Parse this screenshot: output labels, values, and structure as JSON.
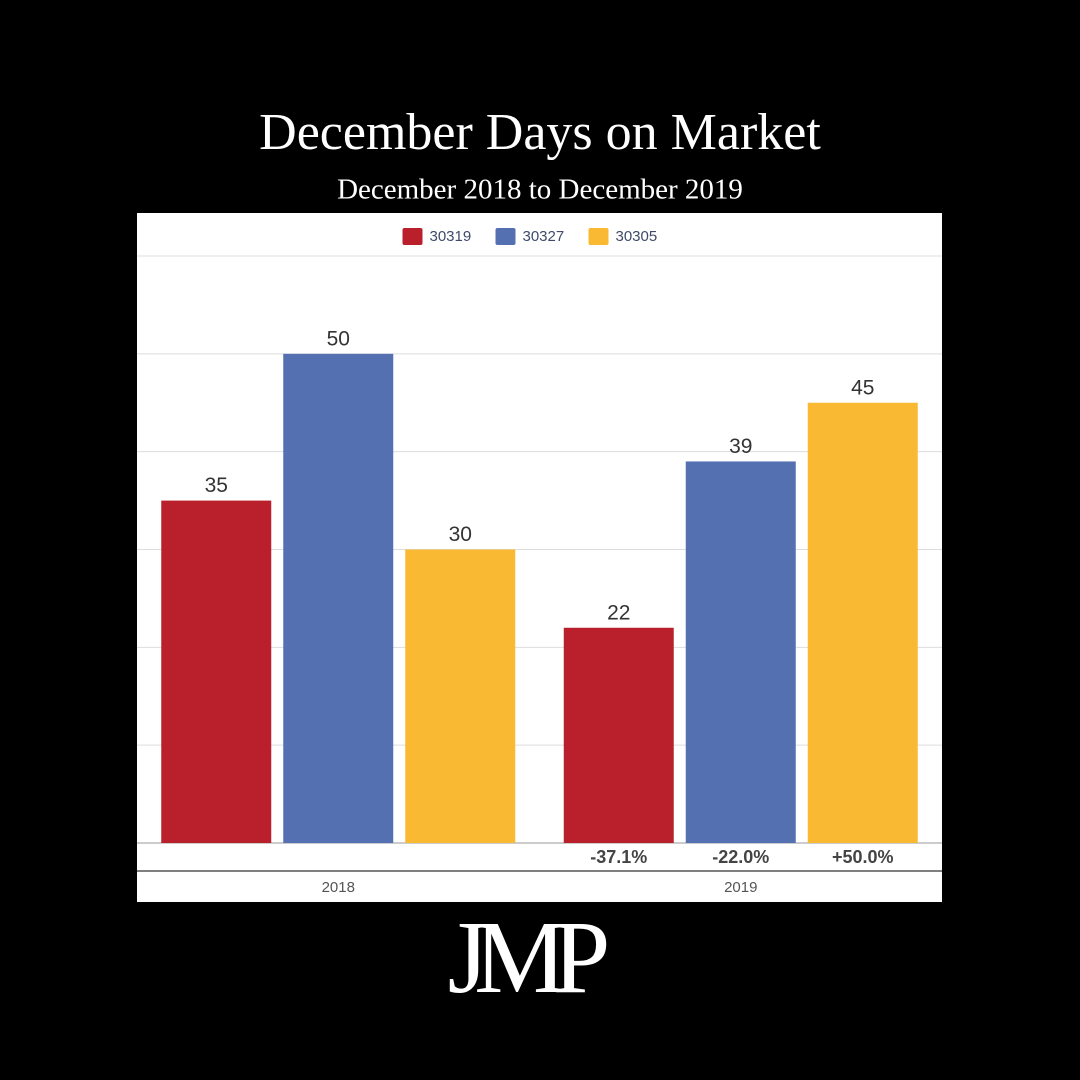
{
  "chart_data": {
    "type": "bar",
    "title": "December Days on Market",
    "subtitle": "December 2018 to December  2019",
    "categories": [
      "2018",
      "2019"
    ],
    "series": [
      {
        "name": "30319",
        "color": "#b9202b",
        "values": [
          35,
          22
        ],
        "change_labels": [
          null,
          "-37.1%"
        ]
      },
      {
        "name": "30327",
        "color": "#5470b0",
        "values": [
          50,
          39
        ],
        "change_labels": [
          null,
          "-22.0%"
        ]
      },
      {
        "name": "30305",
        "color": "#f9b933",
        "values": [
          30,
          45
        ],
        "change_labels": [
          null,
          "+50.0%"
        ]
      }
    ],
    "ylim": [
      0,
      60
    ],
    "yticks": [
      0,
      10,
      20,
      30,
      40,
      50,
      60
    ],
    "grid": true,
    "legend": "top",
    "logo": "JMP"
  }
}
